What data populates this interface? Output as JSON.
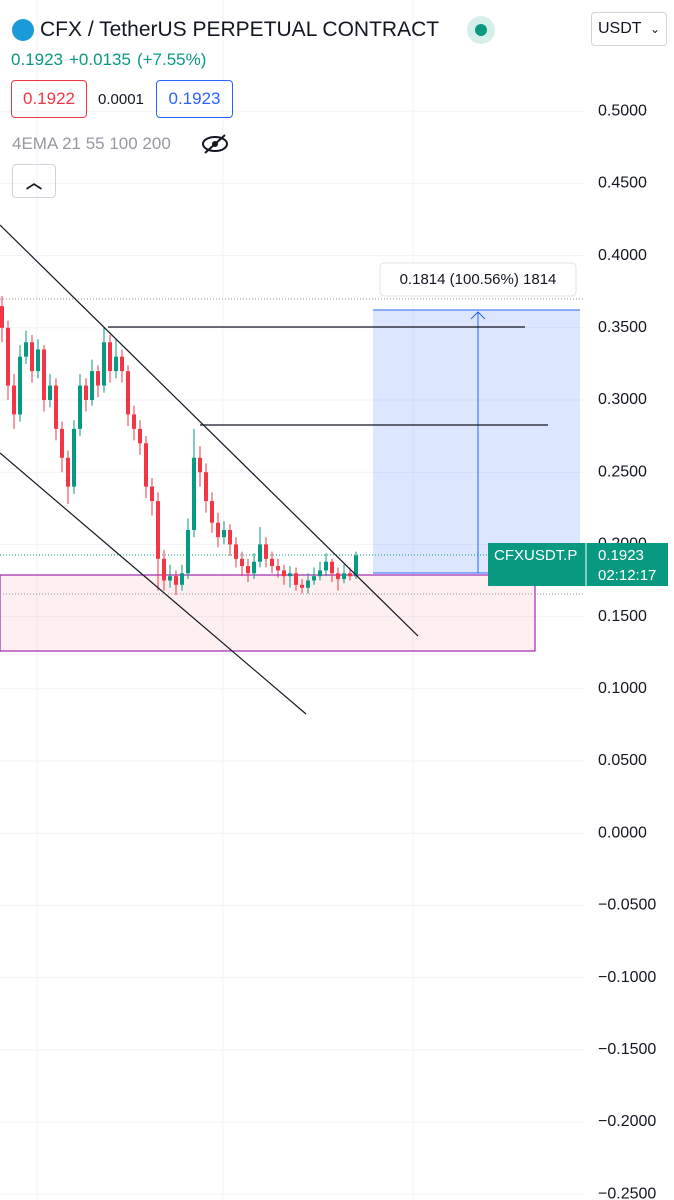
{
  "header": {
    "title": "CFX / TetherUS PERPETUAL CONTRACT",
    "currency": "USDT",
    "last": "0.1923",
    "change": "+0.0135",
    "change_pct": "(+7.55%)",
    "bid": "0.1922",
    "spread": "0.0001",
    "ask": "0.1923",
    "indicator": "4EMA 21 55 100 200"
  },
  "measure_label": "0.1814 (100.56%) 1814",
  "price_tag": {
    "symbol": "CFXUSDT.P",
    "price": "0.1923",
    "countdown": "02:12:17"
  },
  "chart_data": {
    "type": "candlestick",
    "up_color": "#089981",
    "down_color": "#f23645",
    "grid": true,
    "ylim": [
      -0.254,
      0.577
    ],
    "yticks": [
      {
        "value": 0.5,
        "label": "0.5000"
      },
      {
        "value": 0.45,
        "label": "0.4500"
      },
      {
        "value": 0.4,
        "label": "0.4000"
      },
      {
        "value": 0.35,
        "label": "0.3500"
      },
      {
        "value": 0.3,
        "label": "0.3000"
      },
      {
        "value": 0.25,
        "label": "0.2500"
      },
      {
        "value": 0.2,
        "label": "0.2000"
      },
      {
        "value": 0.15,
        "label": "0.1500"
      },
      {
        "value": 0.1,
        "label": "0.1000"
      },
      {
        "value": 0.05,
        "label": "0.0500"
      },
      {
        "value": 0,
        "label": "0.0000"
      },
      {
        "value": -0.05,
        "label": "−0.0500"
      },
      {
        "value": -0.1,
        "label": "−0.1000"
      },
      {
        "value": -0.15,
        "label": "−0.1500"
      },
      {
        "value": -0.2,
        "label": "−0.2000"
      },
      {
        "value": -0.25,
        "label": "−0.2500"
      }
    ],
    "open": [
      0.365,
      0.35,
      0.31,
      0.29,
      0.33,
      0.34,
      0.32,
      0.335,
      0.3,
      0.31,
      0.28,
      0.26,
      0.24,
      0.28,
      0.31,
      0.3,
      0.32,
      0.31,
      0.34,
      0.32,
      0.33,
      0.32,
      0.29,
      0.28,
      0.27,
      0.24,
      0.23,
      0.19,
      0.175,
      0.178,
      0.172,
      0.18,
      0.21,
      0.26,
      0.25,
      0.23,
      0.215,
      0.205,
      0.21,
      0.2,
      0.19,
      0.185,
      0.18,
      0.188,
      0.2,
      0.19,
      0.185,
      0.182,
      0.178,
      0.18,
      0.172,
      0.17,
      0.175,
      0.178,
      0.182,
      0.188,
      0.18,
      0.176,
      0.18,
      0.178
    ],
    "high": [
      0.372,
      0.355,
      0.318,
      0.338,
      0.348,
      0.345,
      0.342,
      0.338,
      0.318,
      0.315,
      0.285,
      0.265,
      0.286,
      0.318,
      0.315,
      0.328,
      0.324,
      0.35,
      0.345,
      0.342,
      0.335,
      0.324,
      0.296,
      0.286,
      0.275,
      0.246,
      0.236,
      0.196,
      0.186,
      0.182,
      0.186,
      0.218,
      0.28,
      0.268,
      0.256,
      0.236,
      0.222,
      0.216,
      0.214,
      0.205,
      0.195,
      0.19,
      0.194,
      0.212,
      0.205,
      0.195,
      0.19,
      0.186,
      0.185,
      0.184,
      0.176,
      0.18,
      0.184,
      0.188,
      0.194,
      0.19,
      0.184,
      0.186,
      0.184,
      0.195
    ],
    "low": [
      0.34,
      0.3,
      0.28,
      0.285,
      0.325,
      0.312,
      0.315,
      0.292,
      0.295,
      0.272,
      0.25,
      0.228,
      0.235,
      0.275,
      0.292,
      0.296,
      0.302,
      0.305,
      0.312,
      0.315,
      0.312,
      0.282,
      0.272,
      0.262,
      0.232,
      0.22,
      0.168,
      0.168,
      0.17,
      0.165,
      0.168,
      0.176,
      0.205,
      0.24,
      0.222,
      0.208,
      0.198,
      0.2,
      0.192,
      0.184,
      0.178,
      0.174,
      0.176,
      0.184,
      0.184,
      0.18,
      0.177,
      0.172,
      0.17,
      0.168,
      0.166,
      0.166,
      0.172,
      0.175,
      0.178,
      0.174,
      0.168,
      0.173,
      0.175,
      0.176
    ],
    "close": [
      0.35,
      0.31,
      0.29,
      0.33,
      0.34,
      0.32,
      0.335,
      0.3,
      0.31,
      0.28,
      0.26,
      0.24,
      0.28,
      0.31,
      0.3,
      0.32,
      0.31,
      0.34,
      0.32,
      0.33,
      0.32,
      0.29,
      0.28,
      0.27,
      0.24,
      0.23,
      0.19,
      0.175,
      0.178,
      0.172,
      0.18,
      0.21,
      0.26,
      0.25,
      0.23,
      0.215,
      0.205,
      0.21,
      0.2,
      0.19,
      0.185,
      0.18,
      0.188,
      0.2,
      0.19,
      0.185,
      0.182,
      0.178,
      0.18,
      0.172,
      0.17,
      0.175,
      0.178,
      0.182,
      0.188,
      0.18,
      0.176,
      0.18,
      0.178,
      0.1923
    ]
  }
}
